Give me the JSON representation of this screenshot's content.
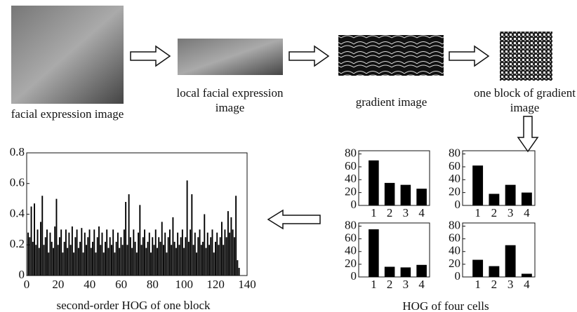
{
  "captions": {
    "face": "facial expression image",
    "local": "local facial expression image",
    "gradient": "gradient image",
    "block": "one block of gradient image",
    "cells": "HOG of four cells"
  },
  "chart_data": [
    {
      "type": "bar",
      "title": "second-order HOG of one block",
      "color": "#000000",
      "xlim": [
        0,
        140
      ],
      "xticks": [
        0,
        20,
        40,
        60,
        80,
        100,
        120,
        140
      ],
      "ylim": [
        0,
        0.8
      ],
      "yticks": [
        0,
        0.2,
        0.4,
        0.6,
        0.8
      ],
      "values": [
        0.28,
        0.25,
        0.45,
        0.22,
        0.47,
        0.2,
        0.3,
        0.18,
        0.35,
        0.52,
        0.2,
        0.25,
        0.3,
        0.15,
        0.28,
        0.22,
        0.18,
        0.32,
        0.5,
        0.2,
        0.25,
        0.3,
        0.15,
        0.22,
        0.3,
        0.18,
        0.28,
        0.2,
        0.32,
        0.15,
        0.25,
        0.3,
        0.18,
        0.22,
        0.31,
        0.15,
        0.28,
        0.2,
        0.25,
        0.3,
        0.18,
        0.22,
        0.3,
        0.15,
        0.25,
        0.32,
        0.2,
        0.28,
        0.15,
        0.22,
        0.3,
        0.18,
        0.25,
        0.2,
        0.3,
        0.15,
        0.22,
        0.28,
        0.18,
        0.25,
        0.2,
        0.3,
        0.48,
        0.2,
        0.53,
        0.25,
        0.18,
        0.3,
        0.22,
        0.15,
        0.28,
        0.46,
        0.2,
        0.25,
        0.3,
        0.18,
        0.22,
        0.28,
        0.15,
        0.25,
        0.2,
        0.3,
        0.18,
        0.25,
        0.22,
        0.35,
        0.2,
        0.28,
        0.15,
        0.25,
        0.3,
        0.2,
        0.38,
        0.22,
        0.18,
        0.28,
        0.2,
        0.25,
        0.3,
        0.18,
        0.25,
        0.62,
        0.22,
        0.3,
        0.53,
        0.2,
        0.28,
        0.15,
        0.25,
        0.3,
        0.2,
        0.22,
        0.4,
        0.18,
        0.28,
        0.2,
        0.25,
        0.3,
        0.15,
        0.22,
        0.28,
        0.2,
        0.25,
        0.35,
        0.2,
        0.3,
        0.25,
        0.42,
        0.28,
        0.38,
        0.3,
        0.25,
        0.52,
        0.1,
        0.05
      ]
    },
    {
      "type": "bar",
      "color": "#000000",
      "categories": [
        "1",
        "2",
        "3",
        "4"
      ],
      "values": [
        70,
        35,
        32,
        26
      ],
      "ylim": [
        0,
        85
      ],
      "yticks": [
        0,
        20,
        40,
        60,
        80
      ]
    },
    {
      "type": "bar",
      "color": "#000000",
      "categories": [
        "1",
        "2",
        "3",
        "4"
      ],
      "values": [
        62,
        18,
        32,
        20
      ],
      "ylim": [
        0,
        85
      ],
      "yticks": [
        0,
        20,
        40,
        60,
        80
      ]
    },
    {
      "type": "bar",
      "color": "#000000",
      "categories": [
        "1",
        "2",
        "3",
        "4"
      ],
      "values": [
        75,
        16,
        15,
        19
      ],
      "ylim": [
        0,
        85
      ],
      "yticks": [
        0,
        20,
        40,
        60,
        80
      ]
    },
    {
      "type": "bar",
      "color": "#000000",
      "categories": [
        "1",
        "2",
        "3",
        "4"
      ],
      "values": [
        27,
        17,
        50,
        5
      ],
      "ylim": [
        0,
        85
      ],
      "yticks": [
        0,
        20,
        40,
        60,
        80
      ]
    }
  ]
}
